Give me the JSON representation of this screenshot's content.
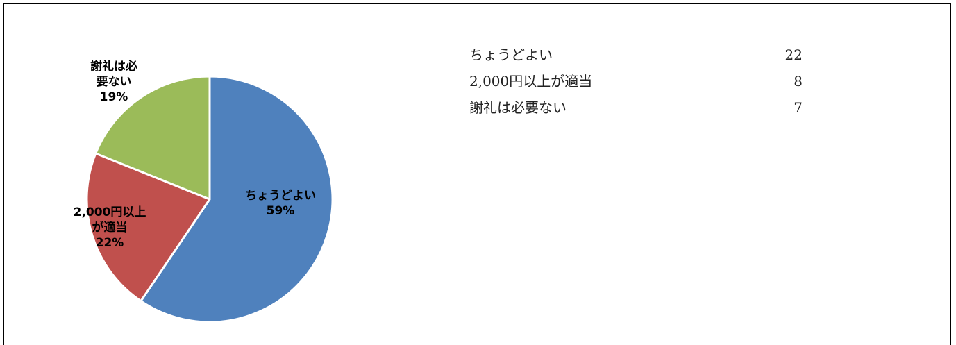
{
  "chart_data": {
    "type": "pie",
    "slices": [
      {
        "label_lines": [
          "ちょうどよい",
          "59%"
        ],
        "value": 22,
        "percent": "59%",
        "color": "#4f81bd"
      },
      {
        "label_lines": [
          "2,000円以上",
          "が適当",
          "22%"
        ],
        "value": 8,
        "percent": "22%",
        "color": "#c0504d"
      },
      {
        "label_lines": [
          "謝礼は必",
          "要ない",
          "19%"
        ],
        "value": 7,
        "percent": "19%",
        "color": "#9bbb59"
      }
    ]
  },
  "table": {
    "rows": [
      {
        "label": "ちょうどよい",
        "count": "22"
      },
      {
        "label": "2,000円以上が適当",
        "count": "8"
      },
      {
        "label": "謝礼は必要ない",
        "count": "7"
      }
    ]
  }
}
